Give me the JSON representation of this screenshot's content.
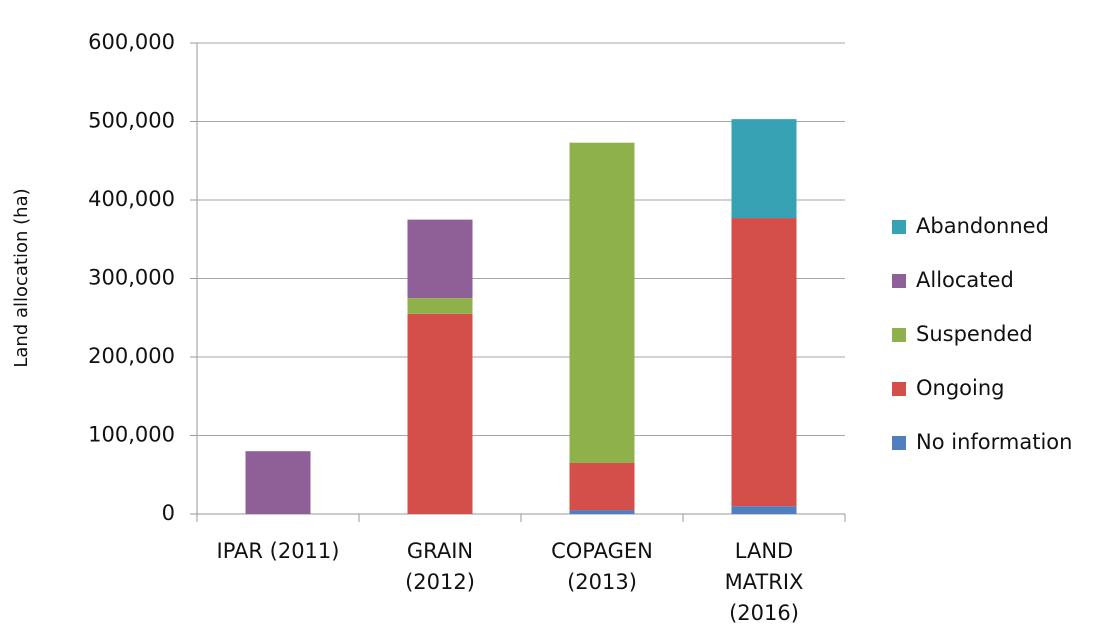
{
  "chart_data": {
    "type": "stacked_bar",
    "y_label": "Land allocation (ha)",
    "categories": [
      "IPAR (2011)",
      "GRAIN\n(2012)",
      "COPAGEN\n(2013)",
      "LAND\nMATRIX\n(2016)"
    ],
    "series": [
      {
        "name": "No information",
        "color": "#4f7fbf",
        "values": [
          null,
          null,
          5000,
          10000
        ]
      },
      {
        "name": "Ongoing",
        "color": "#d44f4a",
        "values": [
          null,
          255000,
          60000,
          367000
        ]
      },
      {
        "name": "Suspended",
        "color": "#8fb14c",
        "values": [
          null,
          20000,
          408000,
          null
        ]
      },
      {
        "name": "Allocated",
        "color": "#8f5f98",
        "values": [
          80000,
          100000,
          null,
          null
        ]
      },
      {
        "name": "Abandonned",
        "color": "#37a2b3",
        "values": [
          null,
          null,
          null,
          126000
        ]
      }
    ],
    "ylim": [
      0,
      600000
    ],
    "yticks": [
      0,
      {
        "value": 100000,
        "label": "100,000"
      },
      {
        "value": 200000,
        "label": "200,000"
      },
      {
        "value": 300000,
        "label": "300,000"
      },
      {
        "value": 400000,
        "label": "400,000"
      },
      {
        "value": 500000,
        "label": "500,000"
      },
      {
        "value": 600000,
        "label": "600,000"
      }
    ],
    "grid": true
  }
}
